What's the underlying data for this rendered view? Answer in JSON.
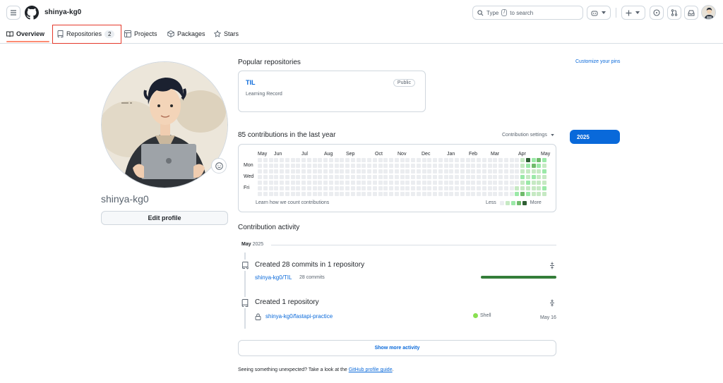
{
  "header": {
    "username": "shinya-kg0",
    "search": {
      "prefix": "Type",
      "key": "/",
      "suffix": "to search"
    }
  },
  "tabs": [
    {
      "label": "Overview",
      "icon": "book-icon"
    },
    {
      "label": "Repositories",
      "icon": "repo-icon",
      "count": "2"
    },
    {
      "label": "Projects",
      "icon": "table-icon"
    },
    {
      "label": "Packages",
      "icon": "package-icon"
    },
    {
      "label": "Stars",
      "icon": "star-icon"
    }
  ],
  "profile": {
    "name": "shinya-kg0",
    "edit_label": "Edit profile"
  },
  "pinned": {
    "title": "Popular repositories",
    "customize_label": "Customize your pins",
    "repo": {
      "name": "TIL",
      "visibility": "Public",
      "description": "Learning Record"
    }
  },
  "contributions": {
    "title": "85 contributions in the last year",
    "settings_label": "Contribution settings",
    "year": "2025",
    "months": [
      "May",
      "Jun",
      "Jul",
      "Aug",
      "Sep",
      "Oct",
      "Nov",
      "Dec",
      "Jan",
      "Feb",
      "Mar",
      "Apr",
      "May"
    ],
    "day_labels": [
      "Mon",
      "Wed",
      "Fri"
    ],
    "learn_label": "Learn how we count contributions",
    "legend_less": "Less",
    "legend_more": "More",
    "levels": [
      [
        0,
        0,
        0,
        0,
        0,
        0,
        0,
        0,
        0,
        0,
        0,
        0,
        0,
        0,
        0,
        0,
        0,
        0,
        0,
        0,
        0,
        0,
        0,
        0,
        0,
        0,
        0,
        0,
        0,
        0,
        0,
        0,
        0,
        0,
        0,
        0,
        0,
        0,
        0,
        0,
        0,
        0,
        0,
        0,
        0,
        0,
        0,
        0,
        0,
        0,
        0,
        0,
        0,
        0,
        0,
        0,
        0,
        0,
        0,
        0,
        0,
        0,
        0,
        0,
        0,
        0,
        0,
        0,
        0,
        0,
        0,
        0,
        0,
        0,
        0,
        0,
        0,
        0,
        0,
        0,
        0,
        0,
        0,
        0,
        0,
        0,
        0,
        0,
        0,
        0,
        0,
        0,
        0,
        0,
        0,
        0,
        0,
        0,
        0,
        0,
        0,
        0,
        0,
        0,
        0,
        0,
        0,
        0,
        0,
        0,
        0,
        0,
        0,
        0,
        0,
        0,
        0,
        0,
        0,
        0,
        0,
        0,
        0,
        0,
        0,
        0,
        0,
        0,
        0,
        0,
        0,
        0,
        0,
        0,
        0,
        0,
        0,
        0,
        0,
        0,
        0,
        0,
        0,
        0,
        0,
        0,
        0,
        0,
        0,
        0,
        0,
        0,
        0,
        0,
        0,
        0,
        0,
        0,
        0,
        0,
        0,
        0,
        0,
        0,
        0,
        0,
        0,
        0,
        0,
        0,
        0,
        0,
        0,
        0,
        0,
        0,
        0,
        0,
        0,
        0,
        0,
        0,
        0,
        0,
        0,
        0,
        0,
        0,
        0,
        0,
        0,
        0,
        0,
        0,
        0,
        0,
        0,
        0,
        0,
        0,
        0,
        0,
        0,
        0,
        0,
        0,
        0,
        0,
        0,
        0,
        0,
        0,
        0,
        0,
        0,
        0,
        0,
        0,
        0,
        0,
        0,
        0,
        0,
        0,
        0,
        0,
        0,
        0,
        0,
        0,
        0,
        0,
        0,
        0,
        0,
        0,
        0,
        0,
        0,
        0,
        0,
        0,
        0,
        0,
        0,
        0,
        0,
        0,
        0,
        0,
        0,
        0,
        0,
        0,
        0,
        0,
        0,
        0,
        0,
        0,
        0,
        0,
        0,
        0,
        0,
        0,
        0,
        0,
        0,
        0,
        0,
        0,
        0,
        0,
        0,
        0,
        0,
        0,
        0,
        0,
        0,
        0,
        0,
        0,
        0,
        0,
        0,
        0,
        0,
        0,
        0,
        0,
        0,
        0,
        0,
        0,
        0,
        0,
        0,
        0,
        0,
        0,
        0,
        0,
        0,
        0,
        0,
        0,
        0,
        0,
        0,
        0,
        0,
        0,
        0,
        0,
        0,
        0,
        0,
        0,
        0,
        0,
        0,
        0,
        0,
        0,
        0,
        0,
        0,
        0,
        0,
        0,
        0,
        0,
        1,
        2,
        1,
        1,
        1,
        2,
        1,
        1,
        3,
        4,
        2,
        1,
        1,
        2,
        1,
        2,
        2,
        3,
        1,
        2,
        1,
        1,
        1,
        3,
        2,
        1,
        1,
        1,
        1,
        1,
        2,
        1,
        2,
        1,
        1,
        2,
        1,
        1,
        1
      ]
    ]
  },
  "activity": {
    "title": "Contribution activity",
    "month": "May",
    "year": "2025",
    "events": [
      {
        "title": "Created 28 commits in 1 repository",
        "repo": "shinya-kg0/TIL",
        "count": "28 commits"
      },
      {
        "title": "Created 1 repository",
        "repo": "shinya-kg0/fastapi-practice",
        "language": "Shell",
        "date": "May 16"
      }
    ],
    "show_more": "Show more activity"
  },
  "footer": {
    "note": "Seeing something unexpected? Take a look at the",
    "link": "GitHub profile guide",
    "end": "."
  },
  "colors": {
    "accent": "#0969da",
    "level0": "#ebedf0",
    "level1": "#c6e9c3",
    "level2": "#9be9a8",
    "level3": "#6fba6b",
    "level4": "#2f5f34"
  }
}
